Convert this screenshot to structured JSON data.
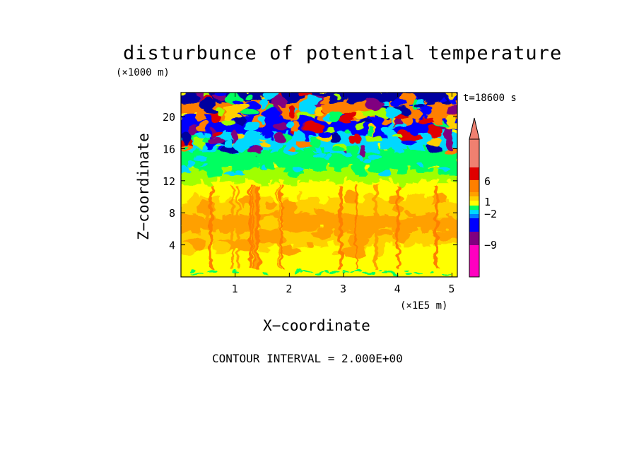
{
  "chart_data": {
    "type": "heatmap",
    "title": "disturbunce of potential temperature",
    "xlabel": "X−coordinate",
    "ylabel": "Z−coordinate",
    "x_unit": "(×1E5 m)",
    "y_unit": "(×1000 m)",
    "time_label": "t=18600 s",
    "footer": "CONTOUR INTERVAL = 2.000E+00",
    "xlim": [
      0,
      5.1
    ],
    "ylim": [
      0,
      23
    ],
    "x_ticks": [
      "1",
      "2",
      "3",
      "4",
      "5"
    ],
    "y_ticks": [
      "4",
      "8",
      "12",
      "16",
      "20"
    ],
    "x_tick_values": [
      1,
      2,
      3,
      4,
      5
    ],
    "y_tick_values": [
      4,
      8,
      12,
      16,
      20
    ],
    "colorbar": {
      "labels": [
        "6",
        "1",
        "−2",
        "−9"
      ],
      "label_values": [
        6,
        1,
        -2,
        -9
      ],
      "colors": [
        "#f08070",
        "#e00000",
        "#ff7f00",
        "#ffa000",
        "#ffd000",
        "#ffff00",
        "#a0ff00",
        "#00ff60",
        "#00d8ff",
        "#0080ff",
        "#0000ff",
        "#0000a0",
        "#800080",
        "#ff00c0"
      ]
    },
    "vertical_profile": [
      {
        "z": 0.5,
        "description_color": "#ffff00"
      },
      {
        "z": 2,
        "description_color": "#ffff00"
      },
      {
        "z": 4,
        "description_color": "#ffd000"
      },
      {
        "z": 6,
        "description_color": "#ffa000"
      },
      {
        "z": 8,
        "description_color": "#ffd000"
      },
      {
        "z": 10,
        "description_color": "#ffff00"
      },
      {
        "z": 12,
        "description_color": "#a0ff00"
      },
      {
        "z": 13.5,
        "description_color": "#00ff60"
      },
      {
        "z": 16,
        "description_color": "#00d8ff"
      },
      {
        "z": 18,
        "description_color": "#0000ff"
      },
      {
        "z": 20,
        "description_color": "#ff7f00"
      },
      {
        "z": 22,
        "description_color": "#0000a0"
      }
    ]
  }
}
